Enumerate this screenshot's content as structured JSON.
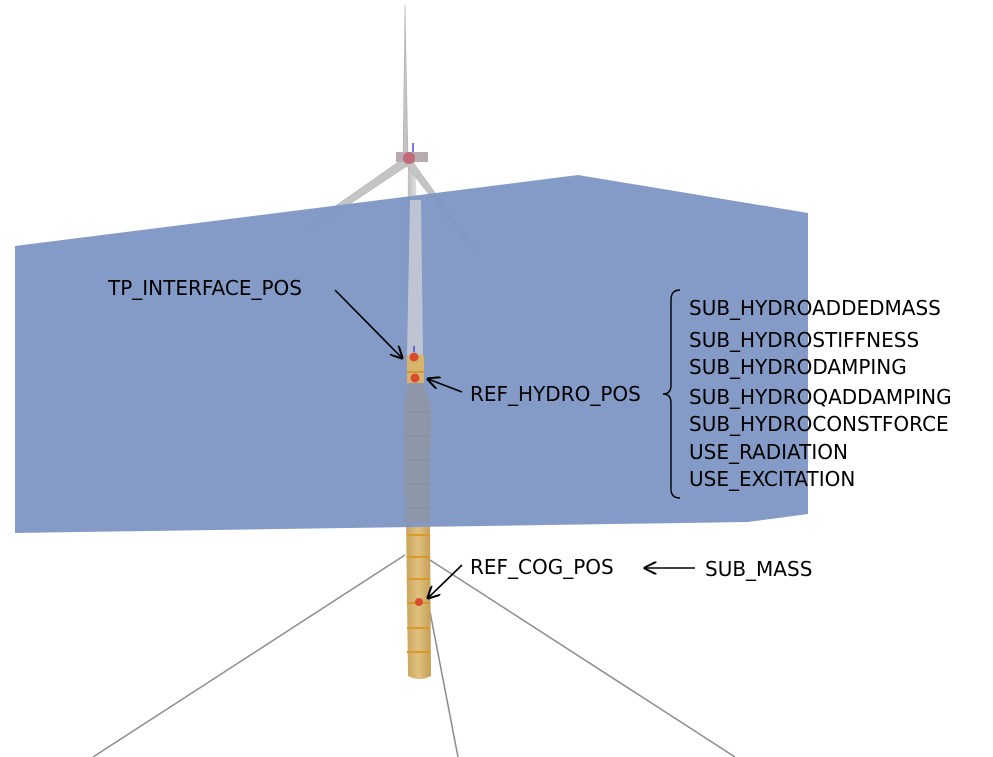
{
  "labels": {
    "tp_interface": "TP_INTERFACE_POS",
    "ref_hydro": "REF_HYDRO_POS",
    "ref_cog": "REF_COG_POS",
    "sub_mass": "SUB_MASS"
  },
  "hydro_params": [
    "SUB_HYDROADDEDMASS",
    "SUB_HYDROSTIFFNESS",
    "SUB_HYDRODAMPING",
    "SUB_HYDROQADDAMPING",
    "SUB_HYDROCONSTFORCE",
    "USE_RADIATION",
    "USE_EXCITATION"
  ],
  "colors": {
    "water": "#7f97c5",
    "tower": "#c4c4c4",
    "substructure": "#d7b36c",
    "marker": "#d94a2b",
    "mooring": "#8c8c8c"
  }
}
